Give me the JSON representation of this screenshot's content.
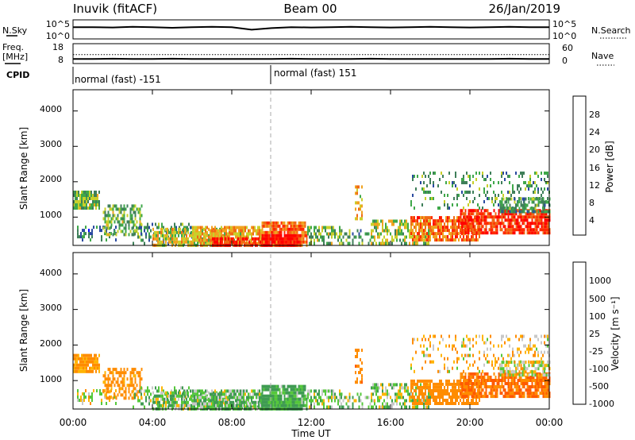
{
  "header": {
    "station": "Inuvik (fitACF)",
    "beam": "Beam 00",
    "date": "26/Jan/2019"
  },
  "noise_panel": {
    "left_label": "N.Sky",
    "right_label": "N.Search",
    "left_ticks": [
      "10^5",
      "10^0"
    ],
    "right_ticks": [
      "10^5",
      "10^0"
    ]
  },
  "freq_panel": {
    "left_label_1": "Freq.",
    "left_label_2": "[MHz]",
    "left_ticks": [
      "18",
      "8"
    ],
    "right_label": "Nave",
    "right_ticks": [
      "60",
      "0"
    ]
  },
  "cpid": {
    "label": "CPID",
    "program_1": "normal (fast) -151",
    "program_2": "normal (fast) 151"
  },
  "power_panel": {
    "ylabel": "Slant Range [km]",
    "yticks": [
      "4000",
      "3000",
      "2000",
      "1000"
    ],
    "colorbar_label": "Power [dB]",
    "colorbar_ticks": [
      "28",
      "24",
      "20",
      "16",
      "12",
      "8",
      "4"
    ]
  },
  "velocity_panel": {
    "ylabel": "Slant Range [km]",
    "yticks": [
      "4000",
      "3000",
      "2000",
      "1000"
    ],
    "colorbar_label": "Velocity [m s⁻¹]",
    "colorbar_ticks": [
      "1000",
      "500",
      "100",
      "25",
      "-25",
      "-100",
      "-500",
      "-1000"
    ]
  },
  "xaxis": {
    "label": "Time UT",
    "ticks": [
      "00:00",
      "04:00",
      "08:00",
      "12:00",
      "16:00",
      "20:00",
      "00:00"
    ]
  },
  "colors": {
    "power_scale": [
      "#0000ff",
      "#2a4aa0",
      "#3f7f5a",
      "#3fa84a",
      "#c8d02a",
      "#f0a21e",
      "#f06a14",
      "#ff2a00",
      "#ff0000"
    ],
    "velocity_scale": [
      "#ff0000",
      "#ff5a00",
      "#ff8c00",
      "#ffb400",
      "#c8c8c8",
      "#55c83a",
      "#3f9b52",
      "#2f5fa8",
      "#1e1ed2"
    ]
  },
  "chart_data": {
    "type": "heatmap",
    "x_range_hours": [
      0,
      24
    ],
    "y_range_km": [
      200,
      4600
    ],
    "power_range_db": [
      0,
      30
    ],
    "velocity_range_ms": [
      -1000,
      1000
    ],
    "scatter_clusters": [
      {
        "t0": 0.0,
        "t1": 1.3,
        "r0": 1300,
        "r1": 1800,
        "p": 12,
        "v": -150,
        "d": 0.85
      },
      {
        "t0": 0.2,
        "t1": 2.2,
        "r0": 400,
        "r1": 800,
        "p": 8,
        "v": 0,
        "d": 0.3
      },
      {
        "t0": 1.5,
        "t1": 3.5,
        "r0": 550,
        "r1": 1400,
        "p": 12,
        "v": -200,
        "d": 0.5
      },
      {
        "t0": 3.0,
        "t1": 6.0,
        "r0": 300,
        "r1": 900,
        "p": 10,
        "v": 50,
        "d": 0.35
      },
      {
        "t0": 4.0,
        "t1": 8.0,
        "r0": 250,
        "r1": 700,
        "p": 16,
        "v": 60,
        "d": 0.7
      },
      {
        "t0": 6.0,
        "t1": 9.5,
        "r0": 300,
        "r1": 800,
        "p": 18,
        "v": 80,
        "d": 0.7
      },
      {
        "t0": 7.0,
        "t1": 9.5,
        "r0": 250,
        "r1": 450,
        "p": 26,
        "v": 100,
        "d": 0.8
      },
      {
        "t0": 9.5,
        "t1": 11.8,
        "r0": 250,
        "r1": 900,
        "p": 22,
        "v": 120,
        "d": 0.85
      },
      {
        "t0": 9.5,
        "t1": 11.5,
        "r0": 250,
        "r1": 550,
        "p": 29,
        "v": 150,
        "d": 0.9
      },
      {
        "t0": 11.8,
        "t1": 13.5,
        "r0": 300,
        "r1": 800,
        "p": 12,
        "v": 60,
        "d": 0.5
      },
      {
        "t0": 13.5,
        "t1": 15.0,
        "r0": 300,
        "r1": 700,
        "p": 10,
        "v": 40,
        "d": 0.4
      },
      {
        "t0": 14.2,
        "t1": 14.6,
        "r0": 1000,
        "r1": 1950,
        "p": 18,
        "v": -400,
        "d": 0.6
      },
      {
        "t0": 15.0,
        "t1": 18.0,
        "r0": 300,
        "r1": 1000,
        "p": 14,
        "v": 40,
        "d": 0.55
      },
      {
        "t0": 17.0,
        "t1": 20.5,
        "r0": 400,
        "r1": 1100,
        "p": 22,
        "v": -300,
        "d": 0.75
      },
      {
        "t0": 19.5,
        "t1": 24.0,
        "r0": 600,
        "r1": 1300,
        "p": 25,
        "v": -500,
        "d": 0.8
      },
      {
        "t0": 17.0,
        "t1": 24.0,
        "r0": 1300,
        "r1": 2300,
        "p": 10,
        "v": -60,
        "d": 0.2
      },
      {
        "t0": 21.5,
        "t1": 24.0,
        "r0": 1200,
        "r1": 1600,
        "p": 10,
        "v": -20,
        "d": 0.6
      }
    ],
    "noise_sky_series": [
      3.2,
      3.2,
      3.1,
      3.3,
      3.2,
      3.0,
      3.2,
      3.3,
      3.2,
      2.4,
      2.9,
      3.2,
      3.1,
      3.2,
      3.3,
      3.2,
      3.1,
      3.2,
      3.3,
      3.2,
      3.1,
      3.2,
      3.3,
      3.2,
      3.2
    ],
    "freq_series_mhz": [
      10.2,
      10.2,
      10.3,
      10.2,
      10.2,
      10.3,
      10.2,
      10.2,
      10.2,
      10.2,
      10.2,
      10.3,
      10.2,
      10.2,
      10.2,
      10.3,
      10.2,
      10.2,
      10.2,
      10.2,
      10.2,
      10.2,
      10.3,
      10.2,
      10.2
    ],
    "nave_level": 28
  }
}
